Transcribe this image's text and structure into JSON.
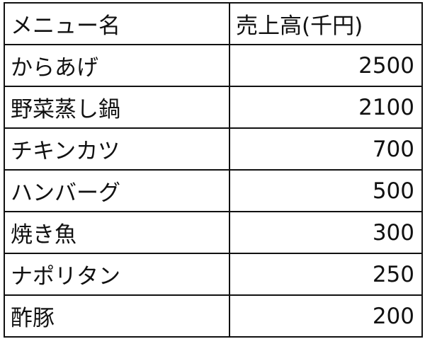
{
  "table": {
    "headers": [
      "メニュー名",
      "売上高(千円)"
    ],
    "rows": [
      {
        "name": "からあげ",
        "sales": "2500"
      },
      {
        "name": "野菜蒸し鍋",
        "sales": "2100"
      },
      {
        "name": "チキンカツ",
        "sales": "700"
      },
      {
        "name": "ハンバーグ",
        "sales": "500"
      },
      {
        "name": "焼き魚",
        "sales": "300"
      },
      {
        "name": "ナポリタン",
        "sales": "250"
      },
      {
        "name": "酢豚",
        "sales": "200"
      }
    ]
  }
}
